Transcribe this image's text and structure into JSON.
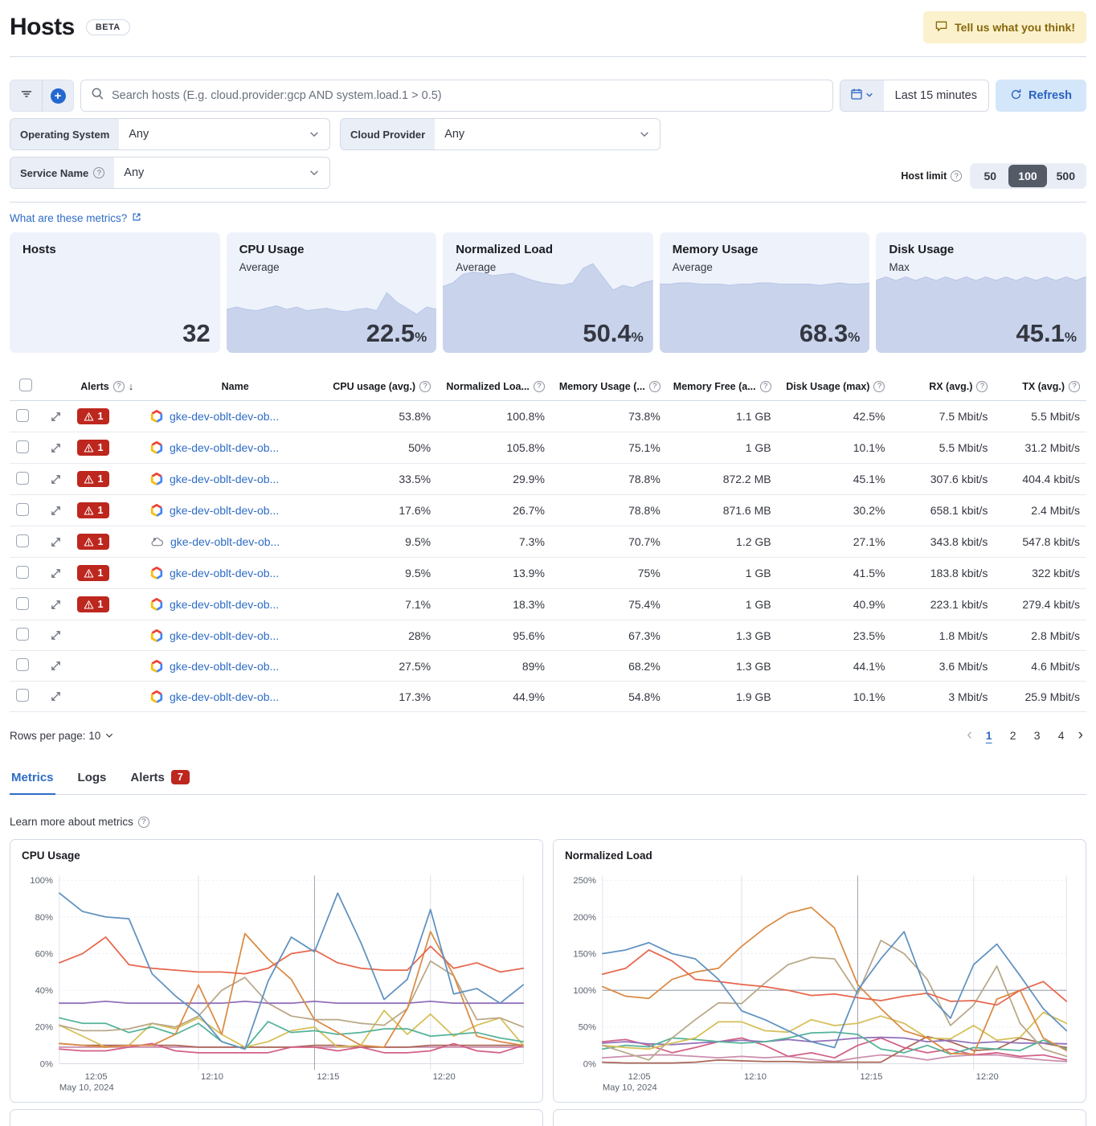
{
  "header": {
    "title": "Hosts",
    "beta_badge": "BETA",
    "feedback_button": "Tell us what you think!"
  },
  "toolbar": {
    "search_placeholder": "Search hosts (E.g. cloud.provider:gcp AND system.load.1 > 0.5)",
    "time_range": "Last 15 minutes",
    "refresh_label": "Refresh"
  },
  "filters": {
    "operating_system": {
      "label": "Operating System",
      "value": "Any"
    },
    "cloud_provider": {
      "label": "Cloud Provider",
      "value": "Any"
    },
    "service_name": {
      "label": "Service Name",
      "value": "Any"
    },
    "host_limit": {
      "label": "Host limit",
      "options": [
        "50",
        "100",
        "500"
      ],
      "selected": "100"
    }
  },
  "metrics_help_link": "What are these metrics?",
  "kpis": [
    {
      "title": "Hosts",
      "subtitle": "",
      "value": "32",
      "unit": "",
      "spark": []
    },
    {
      "title": "CPU Usage",
      "subtitle": "Average",
      "value": "22.5",
      "unit": "%",
      "spark": [
        36,
        38,
        36,
        35,
        37,
        39,
        36,
        38,
        35,
        36,
        37,
        35,
        34,
        36,
        37,
        35,
        50,
        42,
        37,
        32,
        38,
        36
      ]
    },
    {
      "title": "Normalized Load",
      "subtitle": "Average",
      "value": "50.4",
      "unit": "%",
      "spark": [
        55,
        58,
        65,
        67,
        66,
        64,
        65,
        66,
        63,
        60,
        58,
        57,
        56,
        58,
        70,
        74,
        63,
        52,
        56,
        54,
        58,
        60
      ]
    },
    {
      "title": "Memory Usage",
      "subtitle": "Average",
      "value": "68.3",
      "unit": "%",
      "spark": [
        57,
        57,
        58,
        58,
        57,
        57,
        57,
        56,
        57,
        57,
        58,
        58,
        57,
        57,
        57,
        57,
        56,
        57,
        58,
        57,
        57,
        58
      ]
    },
    {
      "title": "Disk Usage",
      "subtitle": "Max",
      "value": "45.1",
      "unit": "%",
      "spark": [
        60,
        63,
        60,
        63,
        60,
        63,
        60,
        63,
        60,
        63,
        60,
        63,
        60,
        63,
        60,
        63,
        60,
        63,
        60,
        63,
        60,
        63
      ]
    }
  ],
  "table": {
    "columns": [
      {
        "label": "Alerts",
        "info": true,
        "sort": "down",
        "align": "left"
      },
      {
        "label": "Name",
        "info": false,
        "align": "left"
      },
      {
        "label": "CPU usage (avg.)",
        "info": true,
        "align": "right"
      },
      {
        "label": "Normalized Loa...",
        "info": true,
        "align": "right"
      },
      {
        "label": "Memory Usage (...",
        "info": true,
        "align": "right"
      },
      {
        "label": "Memory Free (a...",
        "info": true,
        "align": "right"
      },
      {
        "label": "Disk Usage (max)",
        "info": true,
        "align": "right"
      },
      {
        "label": "RX (avg.)",
        "info": true,
        "align": "right"
      },
      {
        "label": "TX (avg.)",
        "info": true,
        "align": "right"
      }
    ],
    "rows": [
      {
        "alerts": "1",
        "icon": "gcp",
        "name": "gke-dev-oblt-dev-ob...",
        "cpu": "53.8%",
        "load": "100.8%",
        "mem": "73.8%",
        "memfree": "1.1 GB",
        "disk": "42.5%",
        "rx": "7.5 Mbit/s",
        "tx": "5.5 Mbit/s"
      },
      {
        "alerts": "1",
        "icon": "gcp",
        "name": "gke-dev-oblt-dev-ob...",
        "cpu": "50%",
        "load": "105.8%",
        "mem": "75.1%",
        "memfree": "1 GB",
        "disk": "10.1%",
        "rx": "5.5 Mbit/s",
        "tx": "31.2 Mbit/s"
      },
      {
        "alerts": "1",
        "icon": "gcp",
        "name": "gke-dev-oblt-dev-ob...",
        "cpu": "33.5%",
        "load": "29.9%",
        "mem": "78.8%",
        "memfree": "872.2 MB",
        "disk": "45.1%",
        "rx": "307.6 kbit/s",
        "tx": "404.4 kbit/s"
      },
      {
        "alerts": "1",
        "icon": "gcp",
        "name": "gke-dev-oblt-dev-ob...",
        "cpu": "17.6%",
        "load": "26.7%",
        "mem": "78.8%",
        "memfree": "871.6 MB",
        "disk": "30.2%",
        "rx": "658.1 kbit/s",
        "tx": "2.4 Mbit/s"
      },
      {
        "alerts": "1",
        "icon": "unknown-host",
        "name": "gke-dev-oblt-dev-ob...",
        "cpu": "9.5%",
        "load": "7.3%",
        "mem": "70.7%",
        "memfree": "1.2 GB",
        "disk": "27.1%",
        "rx": "343.8 kbit/s",
        "tx": "547.8 kbit/s"
      },
      {
        "alerts": "1",
        "icon": "gcp",
        "name": "gke-dev-oblt-dev-ob...",
        "cpu": "9.5%",
        "load": "13.9%",
        "mem": "75%",
        "memfree": "1 GB",
        "disk": "41.5%",
        "rx": "183.8 kbit/s",
        "tx": "322 kbit/s"
      },
      {
        "alerts": "1",
        "icon": "gcp",
        "name": "gke-dev-oblt-dev-ob...",
        "cpu": "7.1%",
        "load": "18.3%",
        "mem": "75.4%",
        "memfree": "1 GB",
        "disk": "40.9%",
        "rx": "223.1 kbit/s",
        "tx": "279.4 kbit/s"
      },
      {
        "alerts": "",
        "icon": "gcp",
        "name": "gke-dev-oblt-dev-ob...",
        "cpu": "28%",
        "load": "95.6%",
        "mem": "67.3%",
        "memfree": "1.3 GB",
        "disk": "23.5%",
        "rx": "1.8 Mbit/s",
        "tx": "2.8 Mbit/s"
      },
      {
        "alerts": "",
        "icon": "gcp",
        "name": "gke-dev-oblt-dev-ob...",
        "cpu": "27.5%",
        "load": "89%",
        "mem": "68.2%",
        "memfree": "1.3 GB",
        "disk": "44.1%",
        "rx": "3.6 Mbit/s",
        "tx": "4.6 Mbit/s"
      },
      {
        "alerts": "",
        "icon": "gcp",
        "name": "gke-dev-oblt-dev-ob...",
        "cpu": "17.3%",
        "load": "44.9%",
        "mem": "54.8%",
        "memfree": "1.9 GB",
        "disk": "10.1%",
        "rx": "3 Mbit/s",
        "tx": "25.9 Mbit/s"
      }
    ]
  },
  "footer": {
    "rows_per_page": "Rows per page: 10",
    "pages": [
      "1",
      "2",
      "3",
      "4"
    ],
    "active_page": "1"
  },
  "tabs": [
    {
      "label": "Metrics",
      "active": true,
      "badge": ""
    },
    {
      "label": "Logs",
      "active": false,
      "badge": ""
    },
    {
      "label": "Alerts",
      "active": false,
      "badge": "7"
    }
  ],
  "learn_more": "Learn more about metrics",
  "chart_data": [
    {
      "type": "line",
      "title": "CPU Usage",
      "ylim": [
        0,
        100
      ],
      "yticks": [
        0,
        20,
        40,
        60,
        80,
        100
      ],
      "ytick_suffix": "%",
      "grid": true,
      "legend": "none",
      "xticks": [
        {
          "label": "12:05",
          "t": 1,
          "grid": false,
          "sub": "May 10, 2024"
        },
        {
          "label": "12:10",
          "t": 6,
          "grid": true
        },
        {
          "label": "12:15",
          "t": 11,
          "grid": true,
          "emphasis": true
        },
        {
          "label": "12:20",
          "t": 16,
          "grid": true
        }
      ],
      "series": [
        {
          "name": "line-mauve",
          "color": "#CA8EAE",
          "values": [
            9,
            9,
            9,
            9,
            9,
            9,
            9,
            9,
            9,
            9,
            9,
            9,
            9,
            9,
            9,
            9,
            9,
            9,
            9,
            9,
            9
          ]
        },
        {
          "name": "line-brown",
          "color": "#AA6556",
          "values": [
            11,
            10,
            10,
            10,
            10,
            10,
            9,
            9,
            9,
            9,
            9,
            10,
            10,
            9,
            9,
            9,
            10,
            10,
            10,
            10,
            10
          ]
        },
        {
          "name": "line-pink",
          "color": "#D36086",
          "values": [
            8,
            7,
            7,
            9,
            11,
            7,
            6,
            6,
            6,
            6,
            9,
            9,
            7,
            9,
            6,
            6,
            7,
            11,
            7,
            6,
            10
          ]
        },
        {
          "name": "line-yellow",
          "color": "#D6BF57",
          "values": [
            21,
            15,
            9,
            10,
            22,
            19,
            25,
            16,
            9,
            12,
            18,
            20,
            9,
            10,
            29,
            16,
            27,
            15,
            21,
            25,
            10
          ]
        },
        {
          "name": "line-teal",
          "color": "#54B399",
          "values": [
            25,
            22,
            22,
            17,
            20,
            16,
            22,
            12,
            8,
            23,
            17,
            18,
            16,
            17,
            19,
            19,
            15,
            16,
            17,
            14,
            12
          ]
        },
        {
          "name": "line-tan",
          "color": "#B9A888",
          "values": [
            21,
            18,
            18,
            19,
            22,
            20,
            26,
            40,
            47,
            33,
            26,
            24,
            24,
            22,
            21,
            30,
            56,
            48,
            24,
            25,
            20
          ]
        },
        {
          "name": "line-purple",
          "color": "#9170B8",
          "values": [
            33,
            33,
            34,
            33,
            33,
            33,
            33,
            33,
            34,
            33,
            33,
            34,
            33,
            33,
            33,
            33,
            34,
            33,
            33,
            33,
            33
          ]
        },
        {
          "name": "line-orange",
          "color": "#DA8B45",
          "values": [
            11,
            10,
            9,
            10,
            10,
            16,
            43,
            16,
            71,
            57,
            46,
            24,
            17,
            10,
            9,
            30,
            72,
            48,
            15,
            12,
            10
          ]
        },
        {
          "name": "line-red",
          "color": "#E7664C",
          "values": [
            55,
            60,
            69,
            54,
            52,
            51,
            50,
            50,
            49,
            52,
            60,
            62,
            55,
            52,
            51,
            51,
            64,
            52,
            55,
            50,
            52
          ]
        },
        {
          "name": "line-blue",
          "color": "#6092C0",
          "values": [
            93,
            83,
            80,
            79,
            49,
            37,
            27,
            12,
            8,
            45,
            69,
            61,
            93,
            66,
            35,
            46,
            84,
            38,
            41,
            33,
            43
          ]
        }
      ]
    },
    {
      "type": "line",
      "title": "Normalized Load",
      "ylim": [
        0,
        250
      ],
      "yticks": [
        0,
        50,
        100,
        150,
        200,
        250
      ],
      "ytick_suffix": "%",
      "grid": true,
      "refline": 100,
      "legend": "none",
      "xticks": [
        {
          "label": "12:05",
          "t": 1,
          "grid": false,
          "sub": "May 10, 2024"
        },
        {
          "label": "12:10",
          "t": 6,
          "grid": true
        },
        {
          "label": "12:15",
          "t": 11,
          "grid": true,
          "emphasis": true
        },
        {
          "label": "12:20",
          "t": 16,
          "grid": true
        }
      ],
      "series": [
        {
          "name": "line-mauve",
          "color": "#CA8EAE",
          "values": [
            8,
            10,
            12,
            12,
            10,
            8,
            10,
            8,
            10,
            6,
            3,
            8,
            12,
            10,
            5,
            10,
            12,
            12,
            8,
            5,
            3
          ]
        },
        {
          "name": "line-brown",
          "color": "#AA6556",
          "values": [
            2,
            1,
            1,
            1,
            2,
            5,
            4,
            3,
            3,
            2,
            2,
            2,
            2,
            20,
            37,
            30,
            18,
            20,
            35,
            28,
            22
          ]
        },
        {
          "name": "line-pink",
          "color": "#D36086",
          "values": [
            30,
            33,
            25,
            15,
            22,
            30,
            35,
            25,
            10,
            15,
            8,
            25,
            35,
            22,
            15,
            20,
            12,
            15,
            10,
            12,
            5
          ]
        },
        {
          "name": "line-purple",
          "color": "#9170B8",
          "values": [
            28,
            30,
            27,
            26,
            28,
            30,
            32,
            30,
            33,
            30,
            32,
            35,
            36,
            35,
            30,
            32,
            28,
            30,
            28,
            28,
            27
          ]
        },
        {
          "name": "line-teal",
          "color": "#54B399",
          "values": [
            20,
            25,
            23,
            35,
            33,
            30,
            28,
            30,
            35,
            42,
            43,
            40,
            20,
            15,
            25,
            13,
            22,
            20,
            18,
            32,
            20
          ]
        },
        {
          "name": "line-yellow",
          "color": "#D6BF57",
          "values": [
            25,
            22,
            20,
            28,
            35,
            57,
            57,
            45,
            43,
            60,
            52,
            55,
            65,
            55,
            35,
            34,
            52,
            32,
            36,
            70,
            55
          ]
        },
        {
          "name": "line-tan",
          "color": "#B9A888",
          "values": [
            25,
            15,
            5,
            35,
            60,
            83,
            82,
            110,
            135,
            145,
            143,
            95,
            168,
            150,
            115,
            52,
            80,
            133,
            55,
            20,
            10
          ]
        },
        {
          "name": "line-orange",
          "color": "#DA8B45",
          "values": [
            105,
            92,
            89,
            115,
            125,
            130,
            160,
            185,
            205,
            213,
            185,
            108,
            75,
            45,
            35,
            14,
            13,
            88,
            100,
            35,
            18
          ]
        },
        {
          "name": "line-red",
          "color": "#E7664C",
          "values": [
            122,
            130,
            155,
            140,
            115,
            112,
            108,
            105,
            100,
            93,
            95,
            90,
            86,
            92,
            96,
            85,
            86,
            80,
            100,
            112,
            85
          ]
        },
        {
          "name": "line-blue",
          "color": "#6092C0",
          "values": [
            150,
            155,
            165,
            150,
            143,
            115,
            72,
            60,
            45,
            30,
            22,
            100,
            143,
            180,
            95,
            62,
            135,
            163,
            120,
            75,
            45
          ]
        }
      ]
    }
  ]
}
